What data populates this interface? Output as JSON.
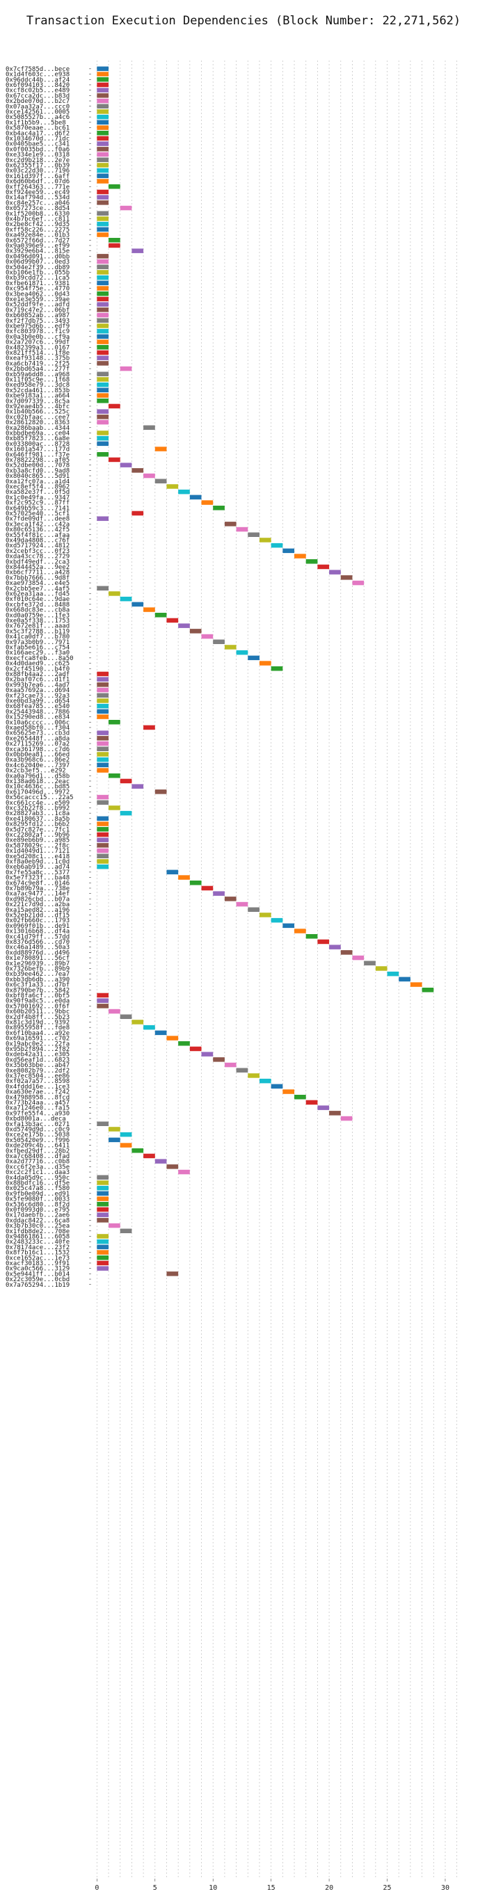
{
  "chart_data": {
    "type": "bar",
    "orientation": "horizontal",
    "title": "Transaction Execution Dependencies (Block Number: 22,271,562)",
    "xlabel": "",
    "ylabel": "",
    "xlim": [
      -0.5,
      31.5
    ],
    "xticks": [
      0,
      5,
      10,
      15,
      20,
      25,
      30
    ],
    "grid": true,
    "transactions": [
      "0x7cf7585d...bece",
      "0x1d4f603c...e938",
      "0x96ddc44b...af24",
      "0x6f094103...8420",
      "0xcf8c02b5...e489",
      "0x67cca2dc...b83d",
      "0x2bde070d...b2c7",
      "0x07aa32a7...ccc0",
      "0xce142561...0005",
      "0x5085527b...a4c6",
      "0x1f1b5b9...5be8",
      "0x5870eaae...bc61",
      "0xb4ac4a17...d6f2",
      "0x1034670d...71dc",
      "0x0405bae5...c341",
      "0x0f0035bd...f0a6",
      "0xe334e1e9...0318",
      "0xc2d9b218...2e7e",
      "0x62355f17...0b39",
      "0x03c22d30...7196",
      "0x161d397f...6aff",
      "0x6d60b6df...07d6",
      "0xff264363...771e",
      "0xf924ee59...ec49",
      "0x14af794d...534d",
      "0xc84e257c...a046",
      "0x057273ce...8d54",
      "0x1f5200b8...6330",
      "0x4b7bc6ef...c811",
      "0x2be8cf42...9d35",
      "0xff58c226...2275",
      "0xa492e84e...01b3",
      "0x6572f66d...7d27",
      "0x9a0396e9...ef99",
      "0x3929e6b4...815e",
      "0x0496d091...d0bb",
      "0x06d99b07...0ed3",
      "0x504e2f39...db89",
      "0xb106e1fb...055b",
      "0xb39cdd72...1ca5",
      "0xfbe61871...9381",
      "0xc954f75e...4770",
      "0x3bea4062...0d43",
      "0xe1e3e559...39ae",
      "0x52ddf9fe...adfd",
      "0x719c47e2...06bf",
      "0xb60852ab...a987",
      "0xf2f7db75...3493",
      "0xbe975d6b...edf9",
      "0xfc803978...f1c9",
      "0x0a3b0e0b...cf9a",
      "0x2a7207c6...99df",
      "0x482399a3...0167",
      "0x821ff514...1f8e",
      "0xeaf93148...375b",
      "0xa6cb7419...2f25",
      "0x2bbd65a4...277f",
      "0xb59a6dd8...a968",
      "0x11f05c9e...1f68",
      "0xed958e79...3dc8",
      "0x52cda461...853b",
      "0xbe9183a1...a664",
      "0x7d097339...8c5a",
      "0x92eae4b5...4bfc",
      "0x1b40b566...525c",
      "0xc02bfaac...cee7",
      "0x28612820...8363",
      "0xa286baab...4344",
      "0xbbdbe69a...ce04",
      "0xb85f7823...6a8e",
      "0x033800ac...8728",
      "0x1601a547...177d",
      "0x646ff981...f37e",
      "0x78822298...af05",
      "0x52dbe00d...7078",
      "0xb3a8cfd0...9ad8",
      "0x8040c865...5d91",
      "0xa12fc07a...a1d4",
      "0xec8ef5f4...8962",
      "0xa582e37f...0f5d",
      "0x1c0e49fa...9347",
      "0xf2c952c9...87ff",
      "0x649b59c3...7141",
      "0x57025e40...5cf1",
      "0x7fde09df...dee8",
      "0x3eca1f42...c42a",
      "0x80c65136...42f5",
      "0x55f4f81c...afaa",
      "0x49da4808...c76f",
      "0xd5717924...4812",
      "0x2cebf3cc...0f23",
      "0xda43cc78...2729",
      "0xbdf49edf...2ca3",
      "0x8444452a...9ee2",
      "0xb6cf7711...a428",
      "0x7bbb7666...9d8f",
      "0xae973854...e4e5",
      "0x2cbb5ee7...4af5",
      "0x62ea31aa...fd45",
      "0xf010c64e...9dae",
      "0xcbfe372d...8488",
      "0x668dc83e...cb8a",
      "0xd0a0759e...1fe3",
      "0xe0a5f338...1753",
      "0x7672e81f...aaad",
      "0x5c3f2788...b119",
      "0x41ca0df7...b780",
      "0x97a3b0b9...7971",
      "0xfab5e616...c754",
      "0x166aec29...f3a0",
      "0xecfca8feb...8a50",
      "0x4d0daed9...c625",
      "0x2cf45190...b4f0",
      "0x88fb4aa2...2adf",
      "0x2baf07c6...d1f1",
      "0x993b7ea6...4ad7",
      "0xaa57692a...d694",
      "0xf23cae73...92a3",
      "0xe0bd3a99...d654",
      "0x68fea785...e540",
      "0x25443948...7886",
      "0x15290ed8...e834",
      "0x10a6cccc...006c",
      "0xaed58bf0...f304",
      "0x65625e73...cb3d",
      "0xe265448f...a8da",
      "0x27115269...07a2",
      "0xca361798...c7d6",
      "0x0bb0ea81...66ed",
      "0xa3b968c6...86e2",
      "0x4c62040e...7397",
      "0x2cb3ef5...e292",
      "0xa0a796d1...d58b",
      "0x138ad618...2eac",
      "0x10c4636c...bd85",
      "0x6170496d...9972",
      "0x56caccc15...22a5",
      "0xc661cc4e...e509",
      "0xc32b22f8...b992",
      "0x28827ab3...1c8a",
      "0xe4180637...8a5b",
      "0x8295fd12...b6b2",
      "0x5d7c827e...7fc1",
      "0xc22802af...9b96",
      "0xe89eb6b9...a985",
      "0x5878029c...2f8c",
      "0x1d4049d1...7121",
      "0xe5d208c1...e418",
      "0xf8a0eb9d...1c0d",
      "0xeb6ab919...ad74",
      "0x7fe55a8c...5377",
      "0x5e7f323f...ba48",
      "0x674c9e8f...0146",
      "0x7b89b79a...738e",
      "0xa7ac9477...14ef",
      "0xd9826cbd...b07a",
      "0x221c7d9d...a2ba",
      "0xa15aed82...a196",
      "0x52eb21dd...df15",
      "0x02fb660c...1793",
      "0x0969f01b...de91",
      "0x13016b68...df4a",
      "0xc41d79ff...57dd",
      "0x8376d566...cd70",
      "0xc46a1489...50a3",
      "0xdd88976d...d496",
      "0x1e780891...56cf",
      "0x1e296939...89b7",
      "0x7326befb...89b9",
      "0xb39ee462...7ea7",
      "0xbb3db6db...a390",
      "0x6c3f1a33...d7bf",
      "0x8790be7b...5842",
      "0xbf8fa6cf...0bf5",
      "0x90f9a8c5...e0da",
      "0x57001692...0f6f",
      "0x60b20511...9bbc",
      "0x2df4b8ff...5b23",
      "0x81c3d19d...9392",
      "0x8955958f...fde8",
      "0x6f10baa4...a92e",
      "0x69a16591...c702",
      "0x19abc0e2...22fa",
      "0x95b2f894...2f82",
      "0xdeb42a31...e305",
      "0xd56eaf1d...6823",
      "0x35b63bbe...ab47",
      "0xe8082b79...2df2",
      "0x37ec8504...ee86",
      "0xf02a7a57...8598",
      "0x4fddd16e...1ce3",
      "0xa630e7ae...f242",
      "0x47988958...8fcd",
      "0x773b24aa...a457",
      "0xa71246e0...fa15",
      "0x97fe55f4...a930",
      "0xbd8001a...deca",
      "0xfa13b3ac...0271",
      "0xd5749d9d...c0c9",
      "0xce2e175b...5038",
      "0x505420e9...f996",
      "0xde209c4b...6411",
      "0xfbed29df...28b2",
      "0xa7c68408...dfad",
      "0xa2d77716...c0b8",
      "0xcc6f2e3a...d35e",
      "0xc2c2f1c1...daa3",
      "0x4da05d9c...950c",
      "0x88bdfc16...df5e",
      "0x025c47a8...f580",
      "0x9fb0e09d...ed91",
      "0x5fe9080f...0033",
      "0x536c6d80...8f2d",
      "0x0f0993d0...e795",
      "0x17daebfb...2ae6",
      "0xddac8422...6ca8",
      "0x3b7b30c0...25ea",
      "0x1fdb8de2...708e",
      "0x94861861...6058",
      "0x2483233c...40fe",
      "0x78174ace...23f2",
      "0x8f7b16c1...1532",
      "0xce1652ac...1e73",
      "0xacf30183...9f91",
      "0x9ca0c566...3129",
      "0x5e9441ff...b014",
      "0x22c3059e...0cbd",
      "0x7a765294...1b19"
    ],
    "start": [
      0,
      0,
      0,
      0,
      0,
      0,
      0,
      0,
      0,
      0,
      0,
      0,
      0,
      0,
      0,
      0,
      0,
      0,
      0,
      0,
      0,
      0,
      1,
      0,
      0,
      0,
      2,
      0,
      0,
      0,
      0,
      0,
      1,
      1,
      3,
      0,
      0,
      0,
      0,
      0,
      0,
      0,
      0,
      0,
      0,
      0,
      0,
      0,
      0,
      0,
      0,
      0,
      0,
      0,
      0,
      0,
      2,
      0,
      0,
      0,
      0,
      0,
      0,
      1,
      0,
      0,
      0,
      4,
      0,
      0,
      0,
      5,
      0,
      1,
      2,
      3,
      4,
      5,
      6,
      7,
      8,
      9,
      10,
      3,
      0,
      11,
      12,
      13,
      14,
      15,
      16,
      17,
      18,
      19,
      20,
      21,
      22,
      0,
      1,
      2,
      3,
      4,
      5,
      6,
      7,
      8,
      9,
      10,
      11,
      12,
      13,
      14,
      15,
      0,
      0,
      0,
      0,
      0,
      0,
      0,
      0,
      0,
      1,
      4,
      0,
      0,
      0,
      0,
      0,
      0,
      0,
      0,
      1,
      2,
      3,
      5,
      0,
      0,
      1,
      2,
      0,
      0,
      0,
      0,
      0,
      0,
      0,
      0,
      0,
      0,
      6,
      7,
      8,
      9,
      10,
      11,
      12,
      13,
      14,
      15,
      16,
      17,
      18,
      19,
      20,
      21,
      22,
      23,
      24,
      25,
      26,
      27,
      28,
      0,
      0,
      0,
      1,
      2,
      3,
      4,
      5,
      6,
      7,
      8,
      9,
      10,
      11,
      12,
      13,
      14,
      15,
      16,
      17,
      18,
      19,
      20,
      21,
      0,
      1,
      2,
      1,
      2,
      3,
      4,
      5,
      6,
      7,
      0,
      0,
      0,
      0,
      0,
      0,
      0,
      0,
      0,
      1,
      2,
      0,
      0,
      0,
      0,
      0,
      0,
      0,
      6
    ],
    "duration": 1,
    "palette": [
      "#1f77b4",
      "#ff7f0e",
      "#2ca02c",
      "#d62728",
      "#9467bd",
      "#8c564b",
      "#e377c2",
      "#7f7f7f",
      "#bcbd22",
      "#17becf"
    ]
  }
}
